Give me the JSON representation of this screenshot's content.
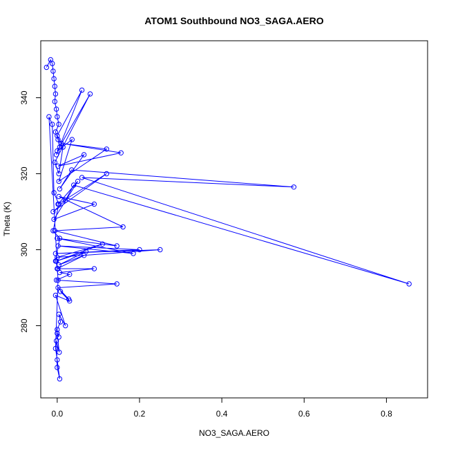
{
  "chart_data": {
    "type": "scatter",
    "title": "ATOM1 Southbound NO3_SAGA.AERO",
    "xlabel": "NO3_SAGA.AERO",
    "ylabel": "Theta (K)",
    "xlim": [
      -0.04,
      0.9
    ],
    "ylim": [
      261,
      355
    ],
    "x_ticks": [
      0.0,
      0.2,
      0.4,
      0.6,
      0.8
    ],
    "x_tick_labels": [
      "0.0",
      "0.2",
      "0.4",
      "0.6",
      "0.8"
    ],
    "y_ticks": [
      280,
      300,
      320,
      340
    ],
    "y_tick_labels": [
      "280",
      "300",
      "320",
      "340"
    ],
    "grid": false,
    "marker": "open-circle",
    "connected": true,
    "color": "#0000ff",
    "series": [
      {
        "x": [
          -0.026,
          -0.016,
          -0.012,
          -0.01,
          -0.008,
          -0.006,
          -0.004,
          -0.006,
          -0.002,
          0.0,
          0.004,
          -0.004,
          0.002,
          0.006,
          -0.002,
          0.06,
          0.0,
          0.014,
          0.004,
          -0.006,
          0.08,
          0.0,
          0.036,
          0.004,
          0.12,
          0.01,
          0.155,
          0.002,
          0.065,
          0.006,
          0.035,
          0.575,
          0.06,
          0.855,
          0.04,
          0.02,
          -0.01,
          0.12,
          0.002,
          0.05,
          -0.008,
          0.09,
          0.004,
          0.16,
          -0.006,
          0.145,
          0.0,
          0.185,
          0.002,
          0.2,
          -0.004,
          0.25,
          0.0,
          0.11,
          -0.002,
          0.07,
          0.004,
          0.065,
          0.0,
          0.09,
          0.006,
          0.03,
          -0.002,
          0.145,
          0.002,
          0.028,
          0.008,
          0.03,
          -0.004,
          0.02,
          0.004,
          0.008,
          0.0,
          0.004,
          0.0,
          0.005,
          -0.002,
          0.0,
          0.006,
          0.0,
          -0.004,
          0.002,
          -0.02,
          -0.012,
          -0.008,
          0.004,
          -0.01,
          0.006,
          -0.004,
          0.002
        ],
        "y": [
          348,
          350,
          349,
          347,
          345,
          343,
          341,
          339,
          337,
          335,
          333,
          331,
          329,
          327,
          325,
          342,
          330,
          327,
          320,
          323,
          341,
          326,
          329,
          318,
          326.5,
          328,
          325.5,
          322,
          325,
          316,
          321,
          316.5,
          319,
          291,
          317,
          313,
          310,
          320,
          312,
          318,
          308,
          312,
          314,
          306,
          305,
          301,
          303,
          299,
          301,
          300,
          299,
          300,
          298,
          301.5,
          297,
          299.5,
          296,
          298.5,
          295,
          295,
          294,
          293.5,
          292,
          291,
          290,
          287,
          289,
          286.5,
          288,
          280,
          283,
          281,
          279,
          277,
          278,
          273,
          276,
          269,
          266,
          271,
          274,
          292,
          335,
          333,
          315,
          312,
          305,
          303,
          297,
          295
        ]
      }
    ]
  }
}
